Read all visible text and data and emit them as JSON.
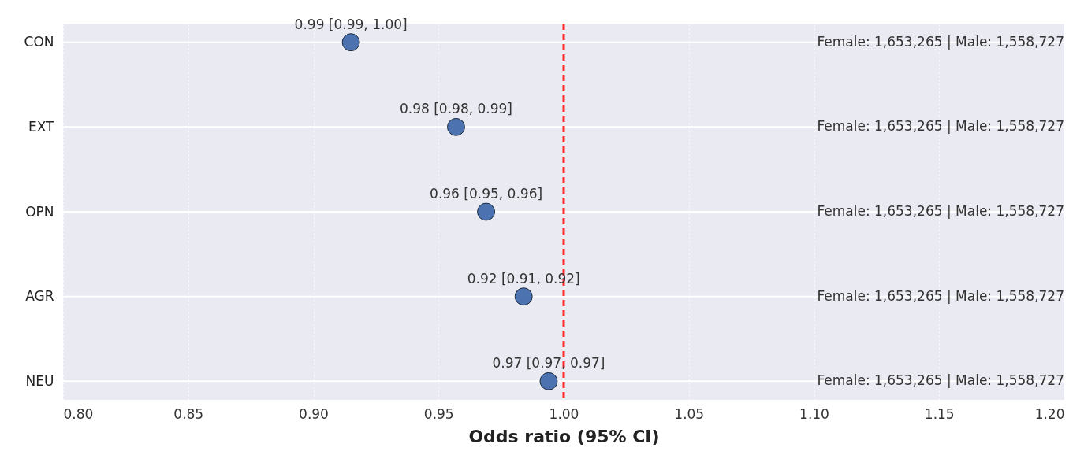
{
  "chart_data": {
    "type": "scatter",
    "orientation": "horizontal",
    "xlabel": "Odds ratio (95% CI)",
    "categories": [
      "CON",
      "EXT",
      "OPN",
      "AGR",
      "NEU"
    ],
    "series": [
      {
        "color": "#4c72b0",
        "values": [
          0.915,
          0.957,
          0.969,
          0.984,
          0.994
        ]
      }
    ],
    "marker": "circle",
    "xlim": [
      0.8,
      1.2
    ],
    "xticks": [
      {
        "value": 0.8,
        "label": "0.80"
      },
      0.85,
      {
        "value": 0.9,
        "label": "0.90"
      },
      0.95,
      {
        "value": 1.0,
        "label": "1.00"
      },
      1.05,
      {
        "value": 1.1,
        "label": "1.10"
      },
      1.15,
      {
        "value": 1.2,
        "label": "1.20"
      }
    ],
    "grid": true,
    "ref_lines": [
      {
        "axis": "x",
        "value": 1.0,
        "color": "#ff2a2a",
        "line_style": "dashed"
      }
    ],
    "annotations": [
      "0.99 [0.99, 1.00]",
      "0.98 [0.98, 0.99]",
      "0.96 [0.95, 0.96]",
      "0.92 [0.91, 0.92]",
      "0.97 [0.97, 0.97]",
      "Female: 1,653,265 | Male: 1,558,727",
      "Female: 1,653,265 | Male: 1,558,727",
      "Female: 1,653,265 | Male: 1,558,727",
      "Female: 1,653,265 | Male: 1,558,727",
      "Female: 1,653,265 | Male: 1,558,727"
    ]
  }
}
